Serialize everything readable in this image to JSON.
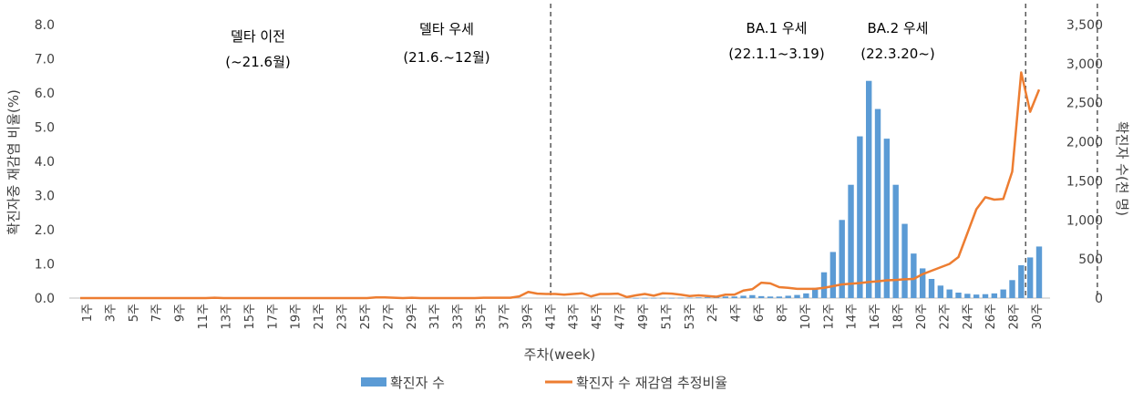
{
  "chart_data": {
    "type": "bar",
    "xlabel": "주차(week)",
    "ylabel_left": "확진자중 재감염 비율(%)",
    "ylabel_right": "확진자 수(천 명)",
    "ylim_left": [
      0,
      8
    ],
    "ylim_right": [
      0,
      3500
    ],
    "left_ticks": [
      "0.0",
      "1.0",
      "2.0",
      "3.0",
      "4.0",
      "5.0",
      "6.0",
      "7.0",
      "8.0"
    ],
    "right_ticks": [
      "0",
      "500",
      "1,000",
      "1,500",
      "2,000",
      "2,500",
      "3,000",
      "3,500"
    ],
    "colors": {
      "bars": "#5b9bd5",
      "line": "#ed7d31",
      "divider": "#595959"
    },
    "legend_position": "bottom",
    "x_tick_labels": [
      "1주",
      "3주",
      "5주",
      "7주",
      "9주",
      "11주",
      "13주",
      "15주",
      "17주",
      "19주",
      "21주",
      "23주",
      "25주",
      "27주",
      "29주",
      "31주",
      "33주",
      "35주",
      "37주",
      "39주",
      "41주",
      "43주",
      "45주",
      "47주",
      "49주",
      "51주",
      "53주",
      "2주",
      "4주",
      "6주",
      "8주",
      "10주",
      "12주",
      "14주",
      "16주",
      "18주",
      "20주",
      "22주",
      "24주",
      "26주",
      "28주",
      "30주"
    ],
    "series": [
      {
        "name": "확진자 수",
        "type": "bar",
        "axis": "right",
        "values": [
          0,
          0,
          0,
          0,
          0,
          0,
          0,
          0,
          0,
          0,
          0,
          0,
          0,
          0,
          0,
          0,
          0,
          0,
          0,
          0,
          0,
          0,
          0,
          0,
          0,
          0,
          0,
          0,
          0,
          0,
          0,
          0,
          0,
          0,
          0,
          0,
          0,
          0,
          0,
          0,
          0,
          0,
          0,
          0,
          0,
          0,
          0,
          0,
          0,
          0,
          0,
          0,
          0,
          0,
          0,
          0,
          0,
          0,
          0,
          0,
          0,
          0,
          1,
          2,
          2,
          2,
          2,
          4,
          5,
          8,
          10,
          14,
          20,
          20,
          30,
          38,
          25,
          20,
          20,
          30,
          40,
          60,
          130,
          330,
          590,
          1000,
          1450,
          2070,
          2780,
          2420,
          2040,
          1450,
          950,
          570,
          380,
          245,
          160,
          110,
          70,
          55,
          45,
          50,
          60,
          110,
          230,
          420,
          520,
          660
        ],
        "style": "bars"
      },
      {
        "name": "확진자 수 재감염 추정비율",
        "type": "line",
        "axis": "left",
        "values": [
          0.0,
          0.0,
          0.0,
          0.0,
          0.0,
          0.0,
          0.0,
          0.0,
          0.0,
          0.0,
          0.0,
          0.0,
          0.0,
          0.0,
          0.0,
          0.01,
          0.0,
          0.0,
          0.0,
          0.0,
          0.0,
          0.0,
          0.0,
          0.0,
          0.0,
          0.0,
          0.0,
          0.0,
          0.0,
          0.0,
          0.0,
          0.0,
          0.0,
          0.02,
          0.02,
          0.01,
          0.0,
          0.01,
          0.0,
          0.0,
          0.0,
          0.0,
          0.0,
          0.0,
          0.0,
          0.01,
          0.01,
          0.01,
          0.01,
          0.05,
          0.18,
          0.13,
          0.12,
          0.12,
          0.1,
          0.12,
          0.14,
          0.05,
          0.12,
          0.12,
          0.13,
          0.03,
          0.08,
          0.12,
          0.07,
          0.14,
          0.13,
          0.1,
          0.06,
          0.08,
          0.06,
          0.04,
          0.1,
          0.1,
          0.22,
          0.26,
          0.45,
          0.43,
          0.32,
          0.3,
          0.27,
          0.27,
          0.27,
          0.3,
          0.35,
          0.4,
          0.42,
          0.44,
          0.47,
          0.49,
          0.52,
          0.53,
          0.55,
          0.56,
          0.7,
          0.8,
          0.9,
          1.0,
          1.2,
          1.9,
          2.6,
          2.95,
          2.88,
          2.9,
          3.7,
          6.6,
          5.45,
          6.1
        ]
      }
    ],
    "annotations": [
      {
        "line1": "델타 이전",
        "line2": "(~21.6월)"
      },
      {
        "line1": "델타 우세",
        "line2": "(21.6.~12월)"
      },
      {
        "line1": "BA.1 우세",
        "line2": "(22.1.1~3.19)"
      },
      {
        "line1": "BA.2 우세",
        "line2": "(22.3.20~)"
      }
    ]
  }
}
